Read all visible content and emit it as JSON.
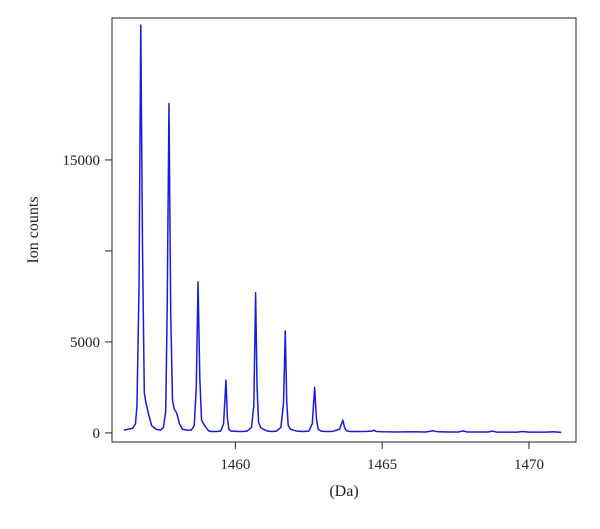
{
  "chart_data": {
    "type": "line",
    "title": "",
    "xlabel": "(Da)",
    "ylabel": "Ion counts",
    "xlim": [
      1455.8,
      1471.6
    ],
    "ylim": [
      -500,
      22800
    ],
    "x_ticks": [
      1460,
      1465,
      1470
    ],
    "x_tick_labels": [
      "1460",
      "1465",
      "1470"
    ],
    "y_ticks": [
      0,
      5000,
      15000
    ],
    "y_tick_labels": [
      "0",
      "5000",
      "15000"
    ],
    "y_minor_ticks": [
      10000
    ],
    "grid": false,
    "legend": "none",
    "line_color": "#1a1adb",
    "series": [
      {
        "x": [
          1456.2,
          1456.5,
          1456.6,
          1456.65,
          1456.72,
          1456.78,
          1456.84,
          1456.9,
          1456.95,
          1457.05,
          1457.15,
          1457.3,
          1457.45,
          1457.55,
          1457.63,
          1457.68,
          1457.74,
          1457.8,
          1457.86,
          1457.92,
          1458.0,
          1458.1,
          1458.2,
          1458.35,
          1458.5,
          1458.6,
          1458.67,
          1458.73,
          1458.79,
          1458.85,
          1458.92,
          1459.0,
          1459.1,
          1459.2,
          1459.35,
          1459.5,
          1459.6,
          1459.68,
          1459.73,
          1459.78,
          1459.85,
          1459.95,
          1460.1,
          1460.25,
          1460.4,
          1460.55,
          1460.63,
          1460.69,
          1460.74,
          1460.79,
          1460.86,
          1460.95,
          1461.1,
          1461.25,
          1461.4,
          1461.55,
          1461.64,
          1461.7,
          1461.75,
          1461.8,
          1461.88,
          1461.98,
          1462.1,
          1462.3,
          1462.5,
          1462.62,
          1462.7,
          1462.76,
          1462.82,
          1462.92,
          1463.05,
          1463.3,
          1463.55,
          1463.66,
          1463.72,
          1463.78,
          1463.9,
          1464.1,
          1464.4,
          1464.65,
          1464.72,
          1464.8,
          1465.0,
          1465.5,
          1466.0,
          1466.5,
          1466.72,
          1466.9,
          1467.3,
          1467.6,
          1467.75,
          1467.9,
          1468.3,
          1468.6,
          1468.76,
          1468.9,
          1469.3,
          1469.6,
          1469.78,
          1470.0,
          1470.3,
          1470.6,
          1470.8,
          1471.0,
          1471.1
        ],
        "y": [
          150,
          250,
          500,
          1500,
          8000,
          22400,
          10000,
          2200,
          1700,
          1000,
          400,
          200,
          150,
          300,
          1200,
          7000,
          18100,
          6500,
          1800,
          1300,
          1100,
          500,
          200,
          150,
          150,
          400,
          2500,
          8300,
          3000,
          700,
          500,
          300,
          100,
          80,
          80,
          100,
          500,
          2900,
          800,
          200,
          100,
          100,
          80,
          80,
          100,
          300,
          1500,
          7700,
          2500,
          600,
          300,
          200,
          100,
          80,
          100,
          300,
          1600,
          5600,
          1700,
          400,
          200,
          150,
          100,
          80,
          100,
          500,
          2500,
          800,
          200,
          100,
          80,
          80,
          200,
          700,
          300,
          120,
          80,
          80,
          80,
          100,
          150,
          80,
          60,
          50,
          60,
          50,
          120,
          60,
          50,
          50,
          110,
          50,
          50,
          50,
          100,
          40,
          40,
          40,
          80,
          40,
          40,
          40,
          60,
          40,
          30
        ]
      }
    ]
  }
}
